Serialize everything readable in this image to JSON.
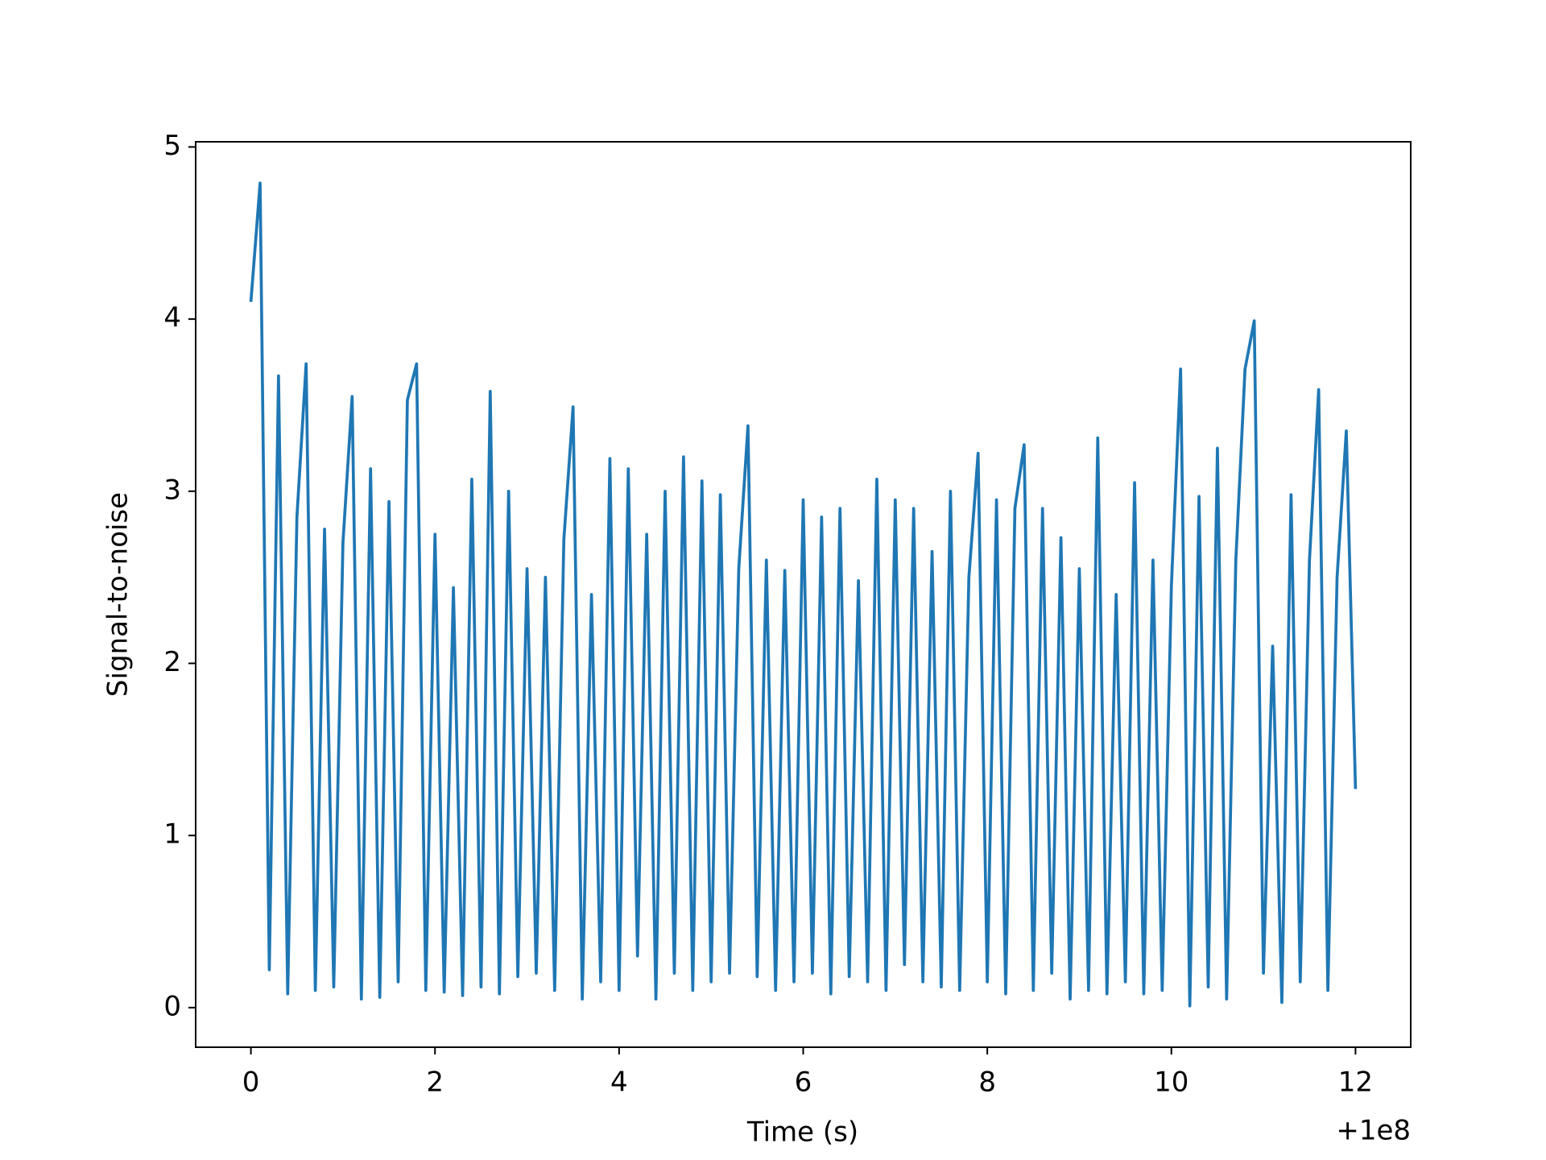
{
  "chart_data": {
    "type": "line",
    "xlabel": "Time (s)",
    "ylabel": "Signal-to-noise",
    "x_offset_label": "+1e8",
    "xlim": [
      -0.6,
      12.6
    ],
    "xticks": [
      0,
      2,
      4,
      6,
      8,
      10,
      12
    ],
    "ylim": [
      -0.23,
      5.03
    ],
    "yticks": [
      0,
      1,
      2,
      3,
      4,
      5
    ],
    "grid": false,
    "x": [
      0,
      0.1,
      0.2,
      0.3,
      0.4,
      0.5,
      0.6,
      0.7,
      0.8,
      0.9,
      1,
      1.1,
      1.2,
      1.3,
      1.4,
      1.5,
      1.6,
      1.7,
      1.8,
      1.9,
      2,
      2.1,
      2.2,
      2.3,
      2.4,
      2.5,
      2.6,
      2.7,
      2.8,
      2.9,
      3,
      3.1,
      3.2,
      3.3,
      3.4,
      3.5,
      3.6,
      3.7,
      3.8,
      3.9,
      4,
      4.1,
      4.2,
      4.3,
      4.4,
      4.5,
      4.6,
      4.7,
      4.8,
      4.9,
      5,
      5.1,
      5.2,
      5.3,
      5.4,
      5.5,
      5.6,
      5.7,
      5.8,
      5.9,
      6,
      6.1,
      6.2,
      6.3,
      6.4,
      6.5,
      6.6,
      6.7,
      6.8,
      6.9,
      7,
      7.1,
      7.2,
      7.3,
      7.4,
      7.5,
      7.6,
      7.7,
      7.8,
      7.9,
      8,
      8.1,
      8.2,
      8.3,
      8.4,
      8.5,
      8.6,
      8.7,
      8.8,
      8.9,
      9,
      9.1,
      9.2,
      9.3,
      9.4,
      9.5,
      9.6,
      9.7,
      9.8,
      9.9,
      10,
      10.1,
      10.2,
      10.3,
      10.4,
      10.5,
      10.6,
      10.7,
      10.8,
      10.9,
      11,
      11.1,
      11.2,
      11.3,
      11.4,
      11.5,
      11.6,
      11.7,
      11.8,
      11.9,
      12
    ],
    "series": [
      {
        "color": "#1f77b4",
        "values": [
          4.1,
          4.79,
          0.22,
          3.67,
          0.08,
          2.85,
          3.74,
          0.1,
          2.78,
          0.12,
          2.7,
          3.55,
          0.05,
          3.13,
          0.06,
          2.94,
          0.15,
          3.53,
          3.74,
          0.1,
          2.75,
          0.09,
          2.44,
          0.07,
          3.07,
          0.12,
          3.58,
          0.08,
          3.0,
          0.18,
          2.55,
          0.2,
          2.5,
          0.1,
          2.72,
          3.49,
          0.05,
          2.4,
          0.15,
          3.19,
          0.1,
          3.13,
          0.3,
          2.75,
          0.05,
          3.0,
          0.2,
          3.2,
          0.1,
          3.06,
          0.15,
          2.98,
          0.2,
          2.55,
          3.38,
          0.18,
          2.6,
          0.1,
          2.54,
          0.15,
          2.95,
          0.2,
          2.85,
          0.08,
          2.9,
          0.18,
          2.48,
          0.15,
          3.07,
          0.1,
          2.95,
          0.25,
          2.9,
          0.15,
          2.65,
          0.12,
          3.0,
          0.1,
          2.5,
          3.22,
          0.15,
          2.95,
          0.08,
          2.9,
          3.27,
          0.1,
          2.9,
          0.2,
          2.73,
          0.05,
          2.55,
          0.1,
          3.31,
          0.08,
          2.4,
          0.15,
          3.05,
          0.08,
          2.6,
          0.1,
          2.45,
          3.71,
          0.01,
          2.97,
          0.12,
          3.25,
          0.05,
          2.6,
          3.71,
          3.99,
          0.2,
          2.1,
          0.03,
          2.98,
          0.15,
          2.6,
          3.59,
          0.1,
          2.5,
          3.35,
          1.27
        ]
      }
    ]
  }
}
